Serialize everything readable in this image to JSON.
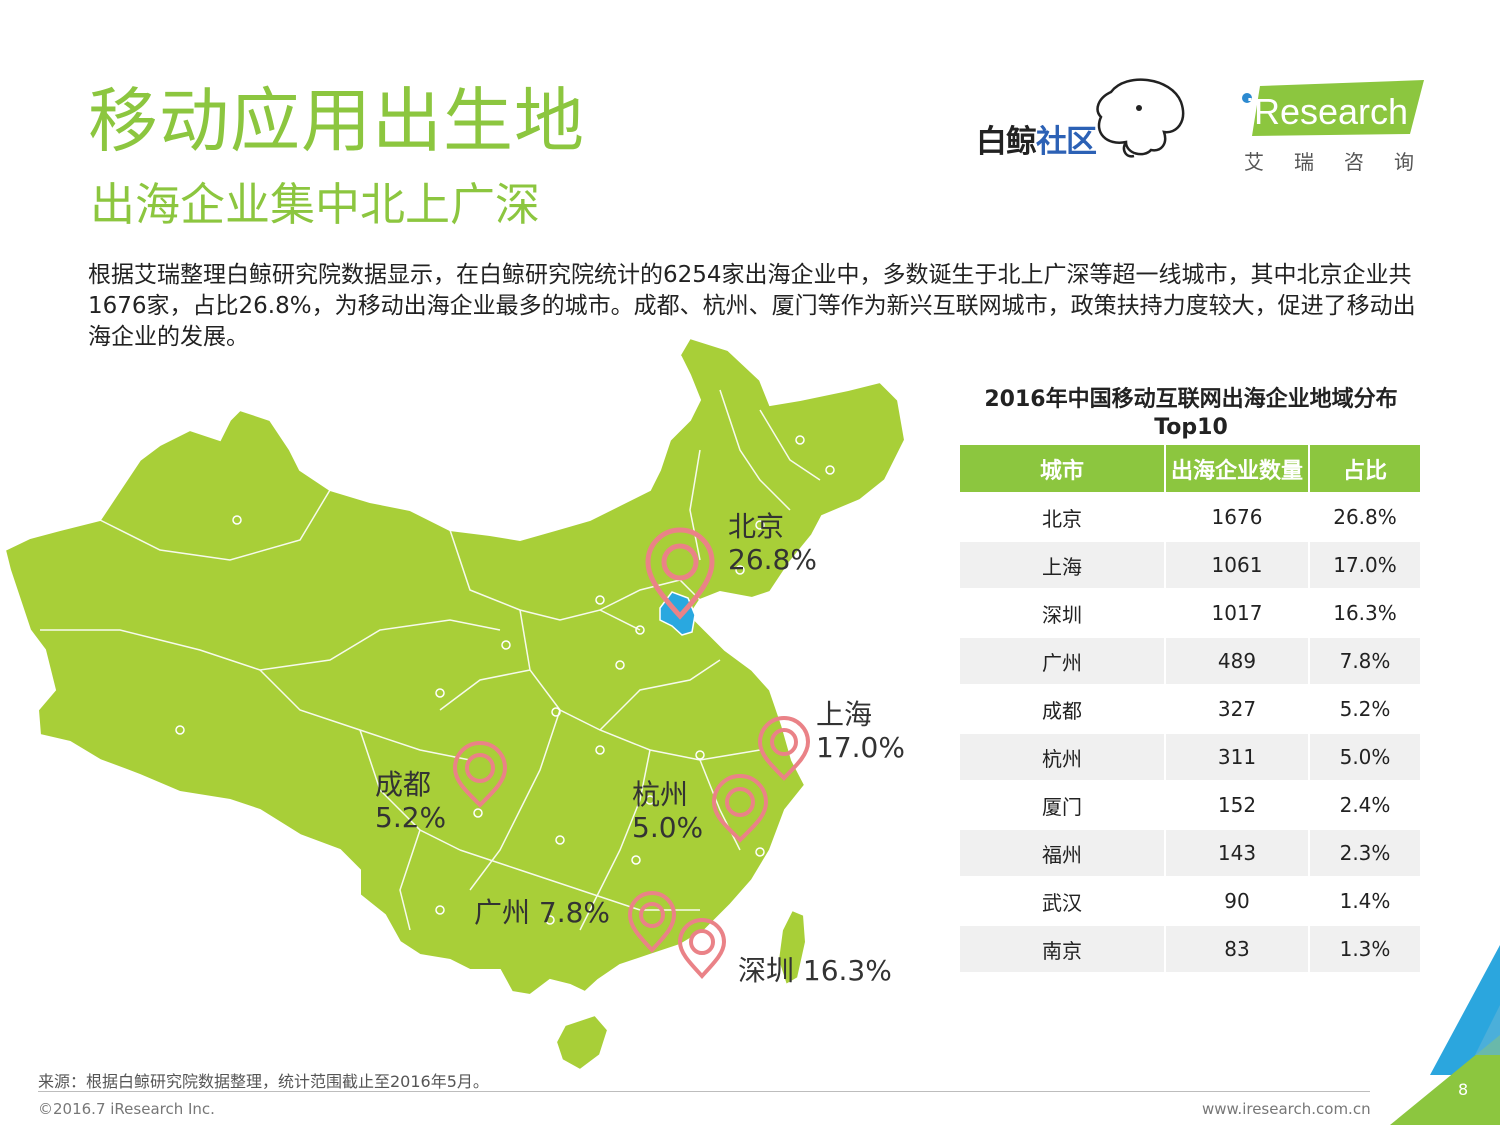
{
  "title": "移动应用出生地",
  "subtitle": "出海企业集中北上广深",
  "body": "根据艾瑞整理白鲸研究院数据显示，在白鲸研究院统计的6254家出海企业中，多数诞生于北上广深等超一线城市，其中北京企业共1676家，占比26.8%，为移动出海企业最多的城市。成都、杭州、厦门等作为新兴互联网城市，政策扶持力度较大，促进了移动出海企业的发展。",
  "logos": {
    "baijing_a": "白鲸",
    "baijing_b": "社区",
    "iresearch": "iResearch",
    "iresearch_cn": "艾瑞咨询"
  },
  "map_labels": {
    "beijing": {
      "name": "北京",
      "pct": "26.8%"
    },
    "shanghai": {
      "name": "上海",
      "pct": "17.0%"
    },
    "chengdu": {
      "name": "成都",
      "pct": "5.2%"
    },
    "hangzhou": {
      "name": "杭州",
      "pct": "5.0%"
    },
    "guangzhou": "广州 7.8%",
    "shenzhen": "深圳 16.3%"
  },
  "table": {
    "title_line1": "2016年中国移动互联网出海企业地域分布",
    "title_line2": "Top10",
    "headers": [
      "城市",
      "出海企业数量",
      "占比"
    ],
    "rows": [
      [
        "北京",
        "1676",
        "26.8%"
      ],
      [
        "上海",
        "1061",
        "17.0%"
      ],
      [
        "深圳",
        "1017",
        "16.3%"
      ],
      [
        "广州",
        "489",
        "7.8%"
      ],
      [
        "成都",
        "327",
        "5.2%"
      ],
      [
        "杭州",
        "311",
        "5.0%"
      ],
      [
        "厦门",
        "152",
        "2.4%"
      ],
      [
        "福州",
        "143",
        "2.3%"
      ],
      [
        "武汉",
        "90",
        "1.4%"
      ],
      [
        "南京",
        "83",
        "1.3%"
      ]
    ]
  },
  "source": "来源：根据白鲸研究院数据整理，统计范围截止至2016年5月。",
  "copyright": "©2016.7 iResearch Inc.",
  "website": "www.iresearch.com.cn",
  "page_number": "8",
  "colors": {
    "accent_green": "#8cc63f",
    "map_green": "#a8cf38",
    "pin_pink": "#ea8287",
    "beijing_blue": "#29a8e0"
  }
}
